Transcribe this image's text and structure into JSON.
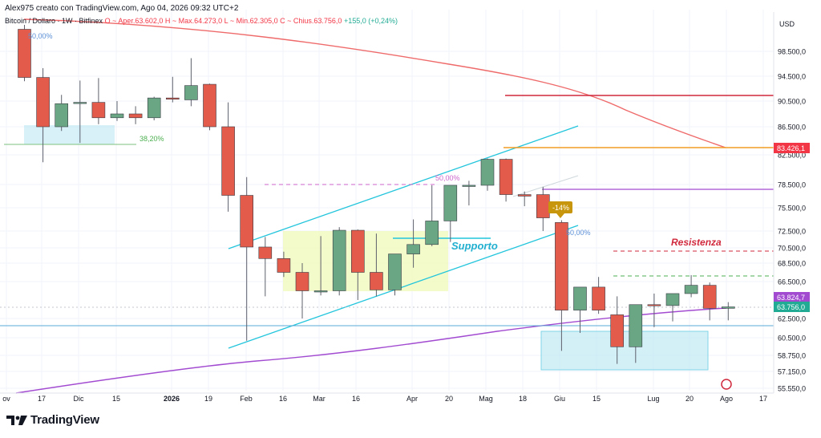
{
  "header": {
    "title": "Alex975 creato con TradingView.com, Ago 04, 2026 09:32 UTC+2",
    "symbol": "Bitcoin / Dollaro · 1W · Bitfinex",
    "ohlc_text": "O ~ Aper.63.602,0  H ~ Max.64.273,0  L ~ Min.62.305,0  C ~ Chius.63.756,0",
    "change": "+155,0 (+0,24%)"
  },
  "logo": {
    "text": "TradingView",
    "icon": "tradingview-logo-icon"
  },
  "colors": {
    "up": "#6aa584",
    "down": "#e35b4a",
    "ma_red": "#ef6a6a",
    "ma_purple": "#a24bd1",
    "channel": "#22c5dc",
    "orange": "#f29d25",
    "resistance": "#d0283c"
  },
  "chart_data": {
    "type": "candlestick",
    "y_axis": {
      "unit": "USD",
      "ticks": [
        "98.500,0",
        "94.500,0",
        "90.500,0",
        "86.500,0",
        "82.500,0",
        "78.500,0",
        "75.500,0",
        "72.500,0",
        "70.500,0",
        "68.500,0",
        "66.500,0",
        "62.500,0",
        "60.500,0",
        "58.750,0",
        "57.150,0",
        "55.550,0"
      ]
    },
    "x_axis": {
      "ticks": [
        "ov",
        "17",
        "Dic",
        "15",
        "2026",
        "19",
        "Feb",
        "16",
        "Mar",
        "16",
        "Apr",
        "20",
        "Mag",
        "18",
        "Giu",
        "15",
        "Lug",
        "20",
        "Ago",
        "17"
      ]
    },
    "candles": [
      {
        "o": 101000,
        "h": 101500,
        "c": 94300,
        "l": 93700
      },
      {
        "o": 94300,
        "h": 95800,
        "c": 86500,
        "l": 81500
      },
      {
        "o": 86500,
        "h": 91500,
        "c": 90100,
        "l": 85900
      },
      {
        "o": 90300,
        "h": 93800,
        "c": 90300,
        "l": 84200
      },
      {
        "o": 90300,
        "h": 94200,
        "c": 87900,
        "l": 86900
      },
      {
        "o": 87900,
        "h": 90500,
        "c": 88500,
        "l": 87400
      },
      {
        "o": 88500,
        "h": 89700,
        "c": 87900,
        "l": 86900
      },
      {
        "o": 87900,
        "h": 91200,
        "c": 91000,
        "l": 87500
      },
      {
        "o": 91000,
        "h": 94400,
        "c": 90800,
        "l": 90300
      },
      {
        "o": 90700,
        "h": 97400,
        "c": 93000,
        "l": 89700
      },
      {
        "o": 93200,
        "h": 93300,
        "c": 86500,
        "l": 86000
      },
      {
        "o": 86500,
        "h": 90300,
        "c": 77100,
        "l": 75000
      },
      {
        "o": 77100,
        "h": 79500,
        "c": 70600,
        "l": 60200
      },
      {
        "o": 70600,
        "h": 71800,
        "c": 69100,
        "l": 64900
      },
      {
        "o": 69100,
        "h": 70000,
        "c": 67500,
        "l": 67000
      },
      {
        "o": 67500,
        "h": 68500,
        "c": 65500,
        "l": 62500
      },
      {
        "o": 65500,
        "h": 71900,
        "c": 65500,
        "l": 65000
      },
      {
        "o": 65500,
        "h": 73000,
        "c": 72600,
        "l": 65000
      },
      {
        "o": 72600,
        "h": 72700,
        "c": 67500,
        "l": 64500
      },
      {
        "o": 67500,
        "h": 72200,
        "c": 65600,
        "l": 64900
      },
      {
        "o": 65600,
        "h": 69700,
        "c": 69700,
        "l": 65000
      },
      {
        "o": 69700,
        "h": 74000,
        "c": 70900,
        "l": 68000
      },
      {
        "o": 70900,
        "h": 78400,
        "c": 73800,
        "l": 70700
      },
      {
        "o": 73800,
        "h": 78400,
        "c": 78400,
        "l": 71200
      },
      {
        "o": 78400,
        "h": 79000,
        "c": 78400,
        "l": 75800
      },
      {
        "o": 78400,
        "h": 82000,
        "c": 81900,
        "l": 77700
      },
      {
        "o": 81900,
        "h": 82000,
        "c": 77200,
        "l": 76300
      },
      {
        "o": 77200,
        "h": 77600,
        "c": 77000,
        "l": 75700
      },
      {
        "o": 77200,
        "h": 78200,
        "c": 74200,
        "l": 72500
      },
      {
        "o": 73600,
        "h": 73900,
        "c": 63400,
        "l": 59200
      },
      {
        "o": 63400,
        "h": 65900,
        "c": 65900,
        "l": 61000
      },
      {
        "o": 65900,
        "h": 67000,
        "c": 63400,
        "l": 63000
      },
      {
        "o": 62900,
        "h": 64900,
        "c": 59600,
        "l": 57900
      },
      {
        "o": 59600,
        "h": 63700,
        "c": 64000,
        "l": 58000
      },
      {
        "o": 64000,
        "h": 65200,
        "c": 63900,
        "l": 61600
      },
      {
        "o": 63900,
        "h": 65200,
        "c": 65200,
        "l": 62200
      },
      {
        "o": 65200,
        "h": 67200,
        "c": 66100,
        "l": 64800
      },
      {
        "o": 66100,
        "h": 66400,
        "c": 63600,
        "l": 62300
      },
      {
        "o": 63602,
        "h": 64273,
        "c": 63756,
        "l": 62305
      }
    ],
    "price_labels": [
      {
        "text": "83.426,1",
        "color": "#f23645"
      },
      {
        "text": "63.824,7",
        "color": "#a24bd1"
      },
      {
        "text": "63.756,0",
        "color": "#22ab94"
      }
    ],
    "annotations": {
      "supporto": "Supporto",
      "resistenza": "Resistenza",
      "pct_top": "50,00%",
      "pct_382": "38,20%",
      "pct_mid": "50,00%",
      "pct_right": "50,00%",
      "badge": "-14%"
    }
  }
}
